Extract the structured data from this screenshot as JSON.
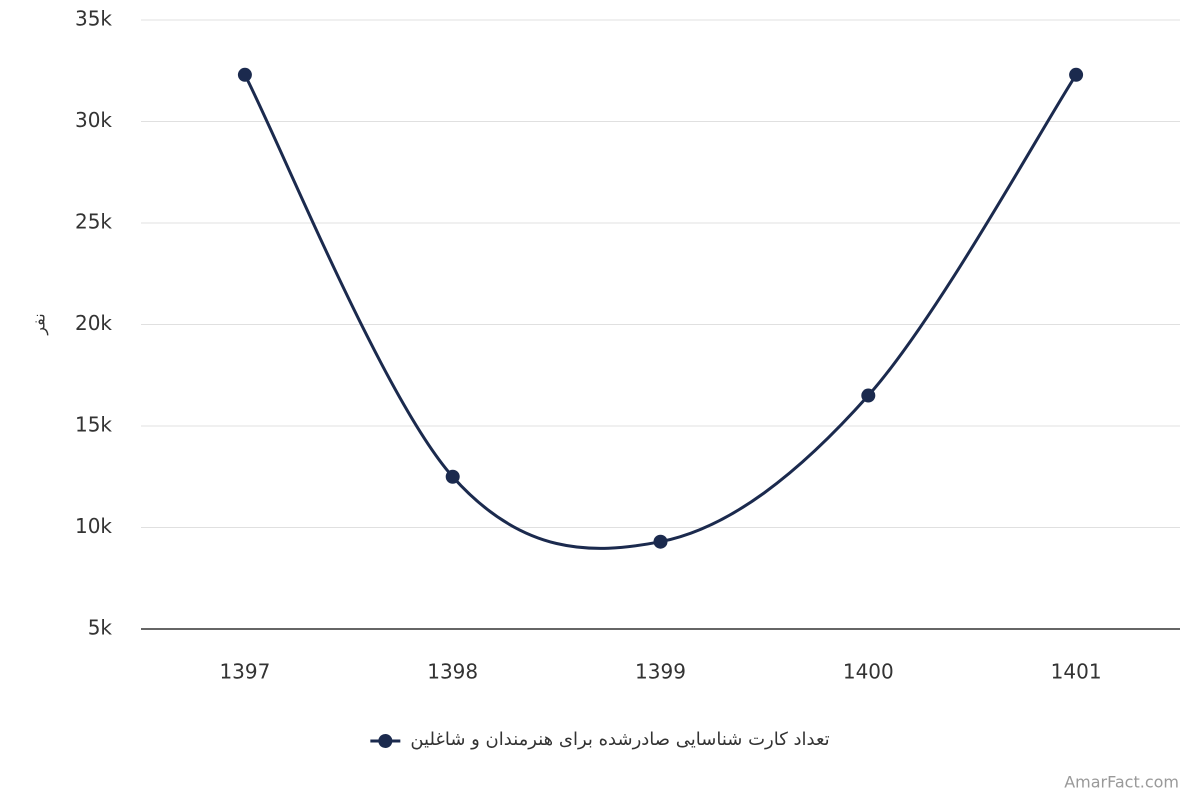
{
  "chart_data": {
    "type": "line",
    "y_label": "نفر",
    "categories": [
      "1397",
      "1398",
      "1399",
      "1400",
      "1401"
    ],
    "series": [
      {
        "name": "تعداد کارت شناسایی صادرشده برای هنرمندان و شاغلین",
        "color": "#1b2a4e",
        "values": [
          32300,
          12500,
          9300,
          16500,
          32300
        ]
      }
    ],
    "ylim": [
      5000,
      35000
    ],
    "yticks": [
      {
        "value": 5000,
        "label": "5k"
      },
      {
        "value": 10000,
        "label": "10k"
      },
      {
        "value": 15000,
        "label": "15k"
      },
      {
        "value": 20000,
        "label": "20k"
      },
      {
        "value": 25000,
        "label": "25k"
      },
      {
        "value": 30000,
        "label": "30k"
      },
      {
        "value": 35000,
        "label": "35k"
      }
    ],
    "grid": true,
    "legend": "bottom",
    "watermark": "AmarFact.com"
  }
}
